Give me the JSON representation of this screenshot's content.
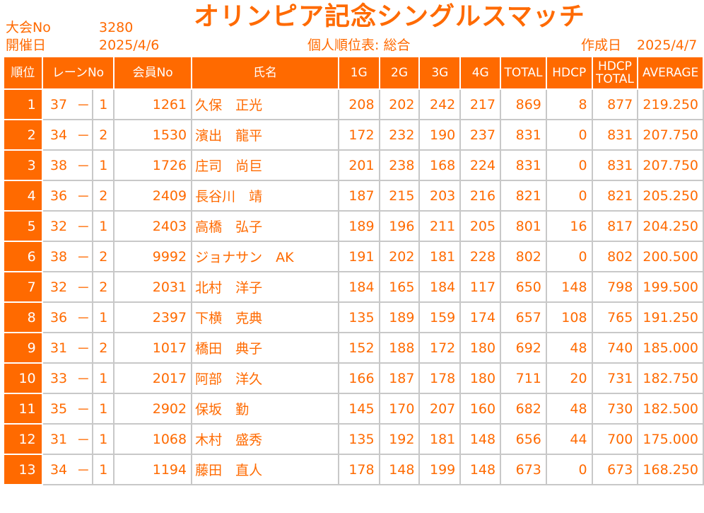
{
  "header": {
    "tournament_no_label": "大会No",
    "tournament_no": "3280",
    "event_date_label": "開催日",
    "event_date": "2025/4/6",
    "title": "オリンピア記念シングルスマッチ",
    "subtitle": "個人順位表: 総合",
    "created_label": "作成日",
    "created_date": "2025/4/7"
  },
  "table": {
    "columns": {
      "rank": "順位",
      "lane": "レーンNo",
      "member": "会員No",
      "name": "氏名",
      "g1": "1G",
      "g2": "2G",
      "g3": "3G",
      "g4": "4G",
      "total": "TOTAL",
      "hdcp": "HDCP",
      "hdcp_total_1": "HDCP",
      "hdcp_total_2": "TOTAL",
      "average": "AVERAGE"
    },
    "rows": [
      {
        "rank": "1",
        "lane": "37",
        "dash": "－",
        "pos": "1",
        "member": "1261",
        "name": "久保　正光",
        "g1": "208",
        "g2": "202",
        "g3": "242",
        "g4": "217",
        "total": "869",
        "hdcp": "8",
        "hdcp_total": "877",
        "average": "219.250"
      },
      {
        "rank": "2",
        "lane": "34",
        "dash": "－",
        "pos": "2",
        "member": "1530",
        "name": "濱出　龍平",
        "g1": "172",
        "g2": "232",
        "g3": "190",
        "g4": "237",
        "total": "831",
        "hdcp": "0",
        "hdcp_total": "831",
        "average": "207.750"
      },
      {
        "rank": "3",
        "lane": "38",
        "dash": "－",
        "pos": "1",
        "member": "1726",
        "name": "庄司　尚巨",
        "g1": "201",
        "g2": "238",
        "g3": "168",
        "g4": "224",
        "total": "831",
        "hdcp": "0",
        "hdcp_total": "831",
        "average": "207.750"
      },
      {
        "rank": "4",
        "lane": "36",
        "dash": "－",
        "pos": "2",
        "member": "2409",
        "name": "長谷川　靖",
        "g1": "187",
        "g2": "215",
        "g3": "203",
        "g4": "216",
        "total": "821",
        "hdcp": "0",
        "hdcp_total": "821",
        "average": "205.250"
      },
      {
        "rank": "5",
        "lane": "32",
        "dash": "－",
        "pos": "1",
        "member": "2403",
        "name": "高橋　弘子",
        "g1": "189",
        "g2": "196",
        "g3": "211",
        "g4": "205",
        "total": "801",
        "hdcp": "16",
        "hdcp_total": "817",
        "average": "204.250"
      },
      {
        "rank": "6",
        "lane": "38",
        "dash": "－",
        "pos": "2",
        "member": "9992",
        "name": "ジョナサン　AK",
        "g1": "191",
        "g2": "202",
        "g3": "181",
        "g4": "228",
        "total": "802",
        "hdcp": "0",
        "hdcp_total": "802",
        "average": "200.500"
      },
      {
        "rank": "7",
        "lane": "32",
        "dash": "－",
        "pos": "2",
        "member": "2031",
        "name": "北村　洋子",
        "g1": "184",
        "g2": "165",
        "g3": "184",
        "g4": "117",
        "total": "650",
        "hdcp": "148",
        "hdcp_total": "798",
        "average": "199.500"
      },
      {
        "rank": "8",
        "lane": "36",
        "dash": "－",
        "pos": "1",
        "member": "2397",
        "name": "下横　克典",
        "g1": "135",
        "g2": "189",
        "g3": "159",
        "g4": "174",
        "total": "657",
        "hdcp": "108",
        "hdcp_total": "765",
        "average": "191.250"
      },
      {
        "rank": "9",
        "lane": "31",
        "dash": "－",
        "pos": "2",
        "member": "1017",
        "name": "橋田　典子",
        "g1": "152",
        "g2": "188",
        "g3": "172",
        "g4": "180",
        "total": "692",
        "hdcp": "48",
        "hdcp_total": "740",
        "average": "185.000"
      },
      {
        "rank": "10",
        "lane": "33",
        "dash": "－",
        "pos": "1",
        "member": "2017",
        "name": "阿部　洋久",
        "g1": "166",
        "g2": "187",
        "g3": "178",
        "g4": "180",
        "total": "711",
        "hdcp": "20",
        "hdcp_total": "731",
        "average": "182.750"
      },
      {
        "rank": "11",
        "lane": "35",
        "dash": "－",
        "pos": "1",
        "member": "2902",
        "name": "保坂　勤",
        "g1": "145",
        "g2": "170",
        "g3": "207",
        "g4": "160",
        "total": "682",
        "hdcp": "48",
        "hdcp_total": "730",
        "average": "182.500"
      },
      {
        "rank": "12",
        "lane": "31",
        "dash": "－",
        "pos": "1",
        "member": "1068",
        "name": "木村　盛秀",
        "g1": "135",
        "g2": "192",
        "g3": "181",
        "g4": "148",
        "total": "656",
        "hdcp": "44",
        "hdcp_total": "700",
        "average": "175.000"
      },
      {
        "rank": "13",
        "lane": "34",
        "dash": "－",
        "pos": "1",
        "member": "1194",
        "name": "藤田　直人",
        "g1": "178",
        "g2": "148",
        "g3": "199",
        "g4": "148",
        "total": "673",
        "hdcp": "0",
        "hdcp_total": "673",
        "average": "168.250"
      }
    ]
  },
  "colors": {
    "accent": "#ff6a00",
    "grid": "#c8c8c8",
    "header_text": "#ffffff"
  }
}
